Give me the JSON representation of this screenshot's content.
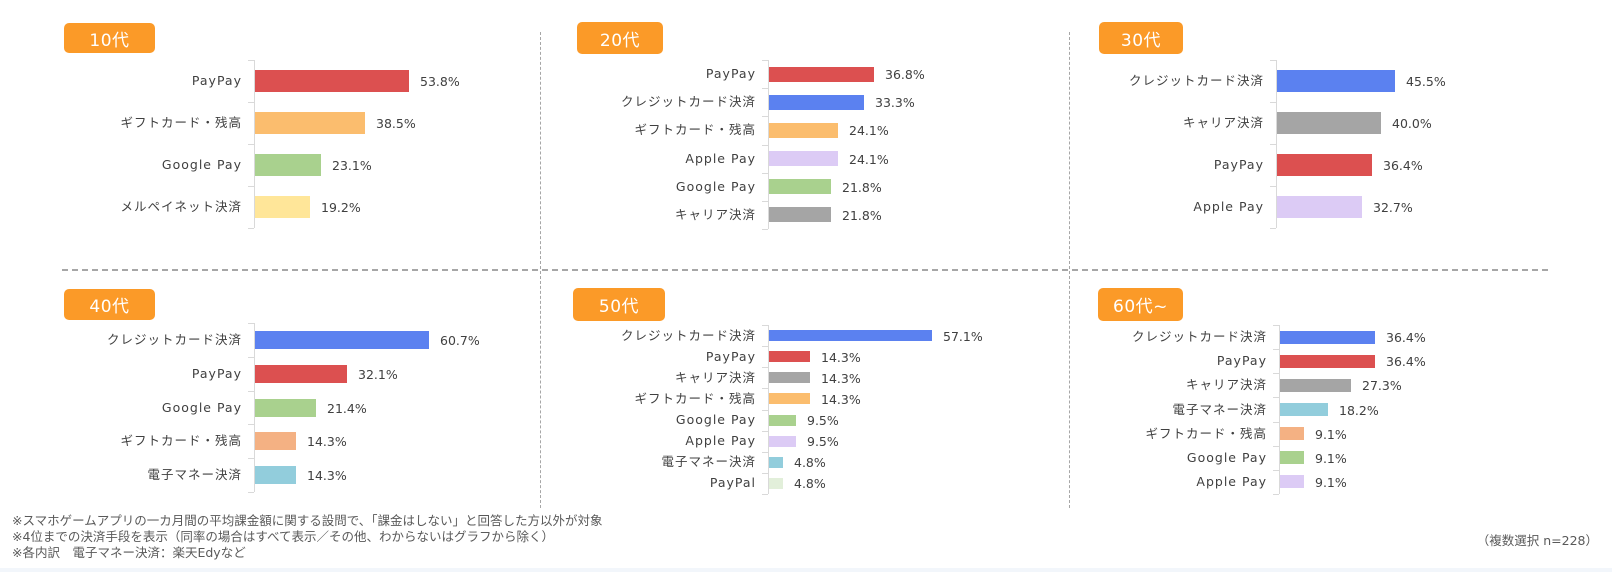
{
  "notes": [
    "※スマホゲームアプリの一カ月間の平均課金額に関する設問で、「課金はしない」と回答した方以外が対象",
    "※4位までの決済手段を表示（同率の場合はすべて表示／その他、わからないはグラフから除く）",
    "※各内訳　電子マネー決済：楽天Edyなど"
  ],
  "sample_note": "（複数選択 n=228）",
  "colors": {
    "badge": "#fb9a28",
    "PayPay": "#dc5050",
    "クレジットカード決済": "#5b81f0",
    "ギフトカード・残高": "#fbbd6e",
    "Google Pay": "#a9d18e",
    "メルペイネット決済": "#ffe699",
    "Apple Pay": "#dccbf5",
    "キャリア決済": "#a5a5a5",
    "電子マネー決済": "#92cddc",
    "PayPal": "#e2efda",
    "ギフトカード・残高_alt": "#f4b183"
  },
  "chart_data": [
    {
      "type": "bar",
      "orientation": "horizontal",
      "title": "10代",
      "categories": [
        "PayPay",
        "ギフトカード・残高",
        "Google Pay",
        "メルペイネット決済"
      ],
      "values": [
        53.8,
        38.5,
        23.1,
        19.2
      ],
      "labels": [
        "53.8%",
        "38.5%",
        "23.1%",
        "19.2%"
      ],
      "bar_colors": [
        "#dc5050",
        "#fbbd6e",
        "#a9d18e",
        "#ffe699"
      ],
      "xlabel": "",
      "ylabel": "",
      "unit": "%",
      "grid": false
    },
    {
      "type": "bar",
      "orientation": "horizontal",
      "title": "20代",
      "categories": [
        "PayPay",
        "クレジットカード決済",
        "ギフトカード・残高",
        "Apple Pay",
        "Google Pay",
        "キャリア決済"
      ],
      "values": [
        36.8,
        33.3,
        24.1,
        24.1,
        21.8,
        21.8
      ],
      "labels": [
        "36.8%",
        "33.3%",
        "24.1%",
        "24.1%",
        "21.8%",
        "21.8%"
      ],
      "bar_colors": [
        "#dc5050",
        "#5b81f0",
        "#fbbd6e",
        "#dccbf5",
        "#a9d18e",
        "#a5a5a5"
      ],
      "xlabel": "",
      "ylabel": "",
      "unit": "%",
      "grid": false
    },
    {
      "type": "bar",
      "orientation": "horizontal",
      "title": "30代",
      "categories": [
        "クレジットカード決済",
        "キャリア決済",
        "PayPay",
        "Apple Pay"
      ],
      "values": [
        45.5,
        40.0,
        36.4,
        32.7
      ],
      "labels": [
        "45.5%",
        "40.0%",
        "36.4%",
        "32.7%"
      ],
      "bar_colors": [
        "#5b81f0",
        "#a5a5a5",
        "#dc5050",
        "#dccbf5"
      ],
      "xlabel": "",
      "ylabel": "",
      "unit": "%",
      "grid": false
    },
    {
      "type": "bar",
      "orientation": "horizontal",
      "title": "40代",
      "categories": [
        "クレジットカード決済",
        "PayPay",
        "Google Pay",
        "ギフトカード・残高",
        "電子マネー決済"
      ],
      "values": [
        60.7,
        32.1,
        21.4,
        14.3,
        14.3
      ],
      "labels": [
        "60.7%",
        "32.1%",
        "21.4%",
        "14.3%",
        "14.3%"
      ],
      "bar_colors": [
        "#5b81f0",
        "#dc5050",
        "#a9d18e",
        "#f4b183",
        "#92cddc"
      ],
      "xlabel": "",
      "ylabel": "",
      "unit": "%",
      "grid": false
    },
    {
      "type": "bar",
      "orientation": "horizontal",
      "title": "50代",
      "categories": [
        "クレジットカード決済",
        "PayPay",
        "キャリア決済",
        "ギフトカード・残高",
        "Google Pay",
        "Apple Pay",
        "電子マネー決済",
        "PayPal"
      ],
      "values": [
        57.1,
        14.3,
        14.3,
        14.3,
        9.5,
        9.5,
        4.8,
        4.8
      ],
      "labels": [
        "57.1%",
        "14.3%",
        "14.3%",
        "14.3%",
        "9.5%",
        "9.5%",
        "4.8%",
        "4.8%"
      ],
      "bar_colors": [
        "#5b81f0",
        "#dc5050",
        "#a5a5a5",
        "#fbbd6e",
        "#a9d18e",
        "#dccbf5",
        "#92cddc",
        "#e2efda"
      ],
      "xlabel": "",
      "ylabel": "",
      "unit": "%",
      "grid": false
    },
    {
      "type": "bar",
      "orientation": "horizontal",
      "title": "60代~",
      "categories": [
        "クレジットカード決済",
        "PayPay",
        "キャリア決済",
        "電子マネー決済",
        "ギフトカード・残高",
        "Google Pay",
        "Apple Pay"
      ],
      "values": [
        36.4,
        36.4,
        27.3,
        18.2,
        9.1,
        9.1,
        9.1
      ],
      "labels": [
        "36.4%",
        "36.4%",
        "27.3%",
        "18.2%",
        "9.1%",
        "9.1%",
        "9.1%"
      ],
      "bar_colors": [
        "#5b81f0",
        "#dc5050",
        "#a5a5a5",
        "#92cddc",
        "#f4b183",
        "#a9d18e",
        "#dccbf5"
      ],
      "xlabel": "",
      "ylabel": "",
      "unit": "%",
      "grid": false
    }
  ]
}
